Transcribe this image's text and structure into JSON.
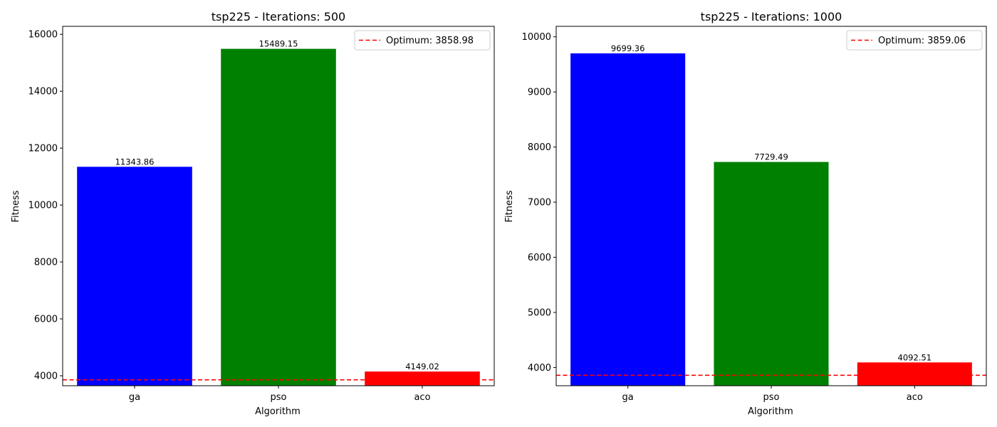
{
  "chart_data": [
    {
      "type": "bar",
      "title": "tsp225 - Iterations: 500",
      "xlabel": "Algorithm",
      "ylabel": "Fitness",
      "categories": [
        "ga",
        "pso",
        "aco"
      ],
      "values": [
        11343.86,
        15489.15,
        4149.02
      ],
      "value_labels": [
        "11343.86",
        "15489.15",
        "4149.02"
      ],
      "colors": [
        "#0000ff",
        "#008000",
        "#ff0000"
      ],
      "ylim": [
        3650,
        16280
      ],
      "yticks": [
        4000,
        6000,
        8000,
        10000,
        12000,
        14000,
        16000
      ],
      "ytick_labels": [
        "4000",
        "6000",
        "8000",
        "10000",
        "12000",
        "14000",
        "16000"
      ],
      "reference_line": {
        "value": 3858.98,
        "label": "Optimum: 3858.98",
        "color": "#ff0000",
        "style": "dashed"
      },
      "legend": "top-right",
      "grid": false
    },
    {
      "type": "bar",
      "title": "tsp225 - Iterations: 1000",
      "xlabel": "Algorithm",
      "ylabel": "Fitness",
      "categories": [
        "ga",
        "pso",
        "aco"
      ],
      "values": [
        9699.36,
        7729.49,
        4092.51
      ],
      "value_labels": [
        "9699.36",
        "7729.49",
        "4092.51"
      ],
      "colors": [
        "#0000ff",
        "#008000",
        "#ff0000"
      ],
      "ylim": [
        3670,
        10190
      ],
      "yticks": [
        4000,
        5000,
        6000,
        7000,
        8000,
        9000,
        10000
      ],
      "ytick_labels": [
        "4000",
        "5000",
        "6000",
        "7000",
        "8000",
        "9000",
        "10000"
      ],
      "reference_line": {
        "value": 3859.06,
        "label": "Optimum: 3859.06",
        "color": "#ff0000",
        "style": "dashed"
      },
      "legend": "top-right",
      "grid": false
    }
  ]
}
